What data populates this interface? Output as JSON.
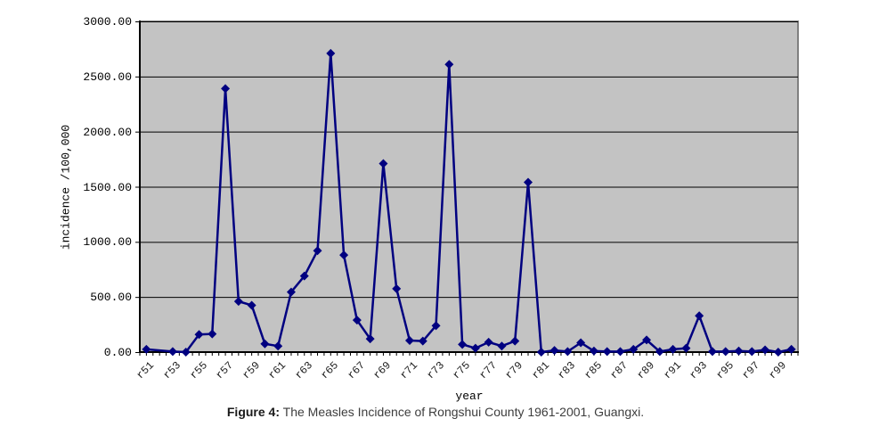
{
  "figure": {
    "caption_label": "Figure 4:",
    "caption_text": " The Measles Incidence of Rongshui County 1961-2001, Guangxi."
  },
  "chart_data": {
    "type": "line",
    "title": "",
    "xlabel": "year",
    "ylabel": "incidence /100,000",
    "ylim": [
      0,
      3000
    ],
    "ytick_interval": 500,
    "ytick_labels": [
      "0.00",
      "500.00",
      "1000.00",
      "1500.00",
      "2000.00",
      "2500.00",
      "3000.00"
    ],
    "xtick_labels": [
      "r51",
      "r53",
      "r55",
      "r57",
      "r59",
      "r61",
      "r63",
      "r65",
      "r67",
      "r69",
      "r71",
      "r73",
      "r75",
      "r77",
      "r79",
      "r81",
      "r83",
      "r85",
      "r87",
      "r89",
      "r91",
      "r93",
      "r95",
      "r97",
      "r99"
    ],
    "xtick_every": 2,
    "values": [
      25,
      null,
      5,
      0,
      160,
      165,
      2390,
      460,
      425,
      75,
      55,
      545,
      690,
      920,
      2710,
      880,
      290,
      120,
      1710,
      575,
      105,
      100,
      240,
      2610,
      70,
      35,
      90,
      55,
      100,
      1540,
      0,
      15,
      5,
      85,
      10,
      5,
      5,
      25,
      110,
      5,
      25,
      35,
      330,
      5,
      5,
      10,
      5,
      20,
      0,
      25
    ],
    "grid": true,
    "legend": false,
    "marker": "diamond",
    "series_color": "#000080",
    "plot_bg_color": "#c3c3c3",
    "plot_border_color": "#808080",
    "gridline_color": "#000000",
    "axis_color": "#000000"
  }
}
